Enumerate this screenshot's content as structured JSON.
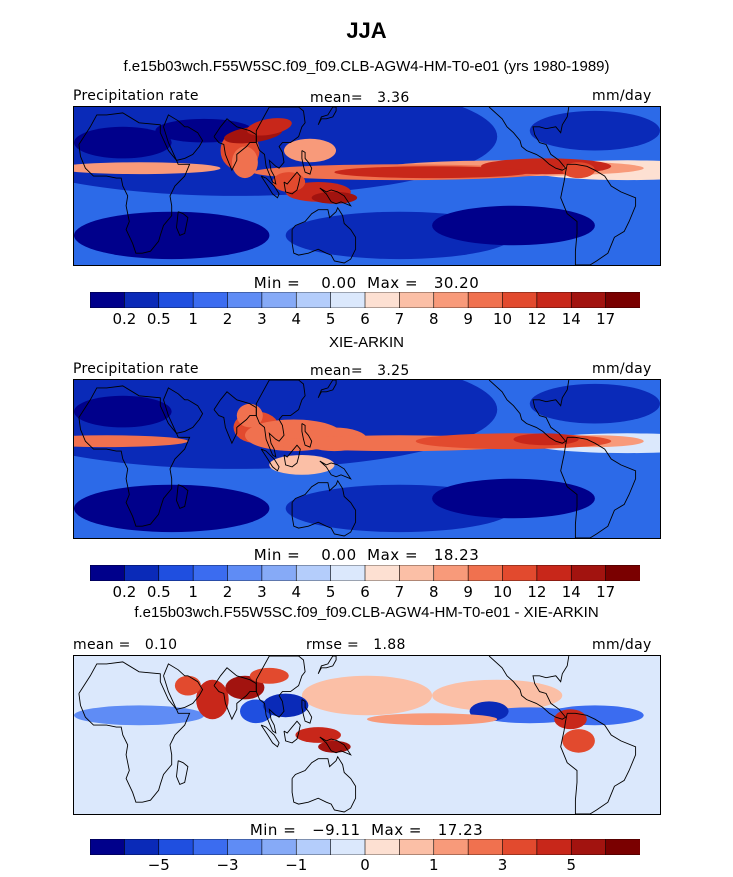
{
  "figure": {
    "season": "JJA"
  },
  "panels": [
    {
      "title": "f.e15b03wch.F55W5SC.f09_f09.CLB-AGW4-HM-T0-e01 (yrs 1980-1989)",
      "left_label": "Precipitation rate",
      "center_label": "mean=   3.36",
      "right_label": "mm/day",
      "minmax": "Min =    0.00  Max =   30.20",
      "colorbar_ticks": [
        "0.2",
        "0.5",
        "1",
        "2",
        "3",
        "4",
        "5",
        "6",
        "7",
        "8",
        "9",
        "10",
        "12",
        "14",
        "17"
      ]
    },
    {
      "title": "XIE-ARKIN",
      "left_label": "Precipitation rate",
      "center_label": "mean=   3.25",
      "right_label": "mm/day",
      "minmax": "Min =    0.00  Max =   18.23",
      "colorbar_ticks": [
        "0.2",
        "0.5",
        "1",
        "2",
        "3",
        "4",
        "5",
        "6",
        "7",
        "8",
        "9",
        "10",
        "12",
        "14",
        "17"
      ]
    },
    {
      "title": "f.e15b03wch.F55W5SC.f09_f09.CLB-AGW4-HM-T0-e01 - XIE-ARKIN",
      "left_label": "mean =   0.10",
      "center_label": "rmse =   1.88",
      "right_label": "mm/day",
      "minmax": "Min =   −9.11  Max =   17.23",
      "colorbar_ticks": [
        "−5",
        "−3",
        "−1",
        "0",
        "1",
        "3",
        "5"
      ]
    }
  ],
  "chart_data": [
    {
      "type": "heatmap",
      "title": "f.e15b03wch.F55W5SC.f09_f09.CLB-AGW4-HM-T0-e01 (yrs 1980-1989)",
      "variable": "Precipitation rate",
      "units": "mm/day",
      "mean": 3.36,
      "min": 0.0,
      "max": 30.2,
      "levels": [
        0.2,
        0.5,
        1,
        2,
        3,
        4,
        5,
        6,
        7,
        8,
        9,
        10,
        12,
        14,
        17
      ]
    },
    {
      "type": "heatmap",
      "title": "XIE-ARKIN",
      "variable": "Precipitation rate",
      "units": "mm/day",
      "mean": 3.25,
      "min": 0.0,
      "max": 18.23,
      "levels": [
        0.2,
        0.5,
        1,
        2,
        3,
        4,
        5,
        6,
        7,
        8,
        9,
        10,
        12,
        14,
        17
      ]
    },
    {
      "type": "heatmap",
      "title": "f.e15b03wch.F55W5SC.f09_f09.CLB-AGW4-HM-T0-e01 - XIE-ARKIN",
      "units": "mm/day",
      "mean": 0.1,
      "rmse": 1.88,
      "min": -9.11,
      "max": 17.23,
      "levels": [
        -5,
        -3,
        -1,
        0,
        1,
        3,
        5
      ]
    }
  ],
  "colorbar_colors": [
    "#00008b",
    "#0a2ab8",
    "#1f4fe0",
    "#3b6cf0",
    "#5f8cf5",
    "#86aaf7",
    "#b4cdfb",
    "#dbe8fc",
    "#fde0d2",
    "#fbbfa6",
    "#f89a7a",
    "#f0714f",
    "#e24a2e",
    "#c8271a",
    "#a2130f",
    "#7a0000"
  ]
}
